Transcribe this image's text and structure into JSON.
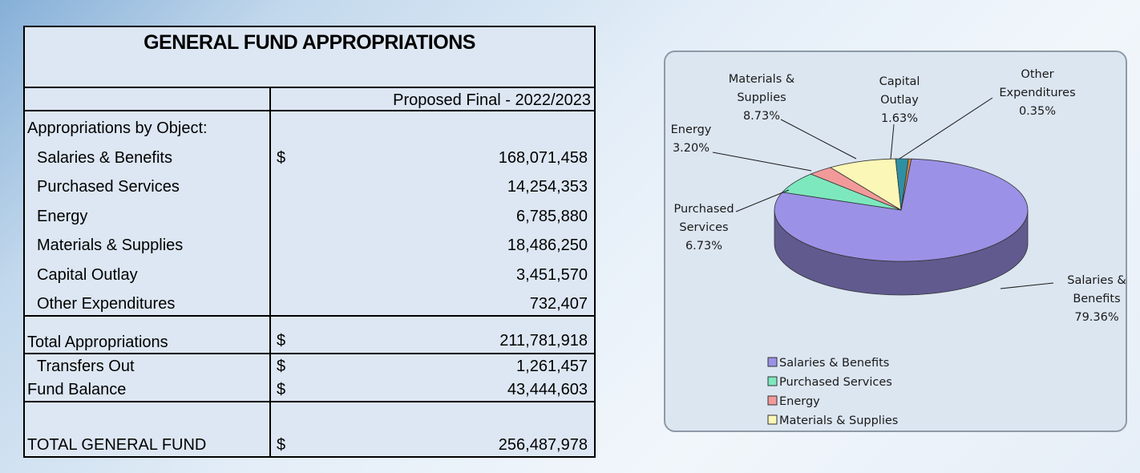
{
  "table": {
    "title": "GENERAL FUND APPROPRIATIONS",
    "column_header": "Proposed Final -  2022/2023",
    "section_label": "Appropriations by Object:",
    "rows": [
      {
        "label": "Salaries & Benefits",
        "dollar": "$",
        "amount": "168,071,458"
      },
      {
        "label": "Purchased Services",
        "dollar": "",
        "amount": "14,254,353"
      },
      {
        "label": "Energy",
        "dollar": "",
        "amount": "6,785,880"
      },
      {
        "label": "Materials & Supplies",
        "dollar": "",
        "amount": "18,486,250"
      },
      {
        "label": "Capital Outlay",
        "dollar": "",
        "amount": "3,451,570"
      },
      {
        "label": "Other Expenditures",
        "dollar": "",
        "amount": "732,407"
      }
    ],
    "total_appropriations": {
      "label": "Total Appropriations",
      "dollar": "$",
      "amount": "211,781,918"
    },
    "transfers_out": {
      "label": "Transfers Out",
      "dollar": "$",
      "amount": "1,261,457"
    },
    "fund_balance": {
      "label": "Fund Balance",
      "dollar": "$",
      "amount": "43,444,603"
    },
    "total_general_fund": {
      "label": "TOTAL GENERAL FUND",
      "dollar": "$",
      "amount": "256,487,978"
    }
  },
  "chart_data": {
    "type": "pie",
    "style": "3d",
    "slices": [
      {
        "name": "Salaries & Benefits",
        "label_lines": [
          "Salaries &",
          "Benefits",
          "79.36%"
        ],
        "value": 79.36,
        "color": "#9b91e6"
      },
      {
        "name": "Purchased Services",
        "label_lines": [
          "Purchased",
          "Services",
          "6.73%"
        ],
        "value": 6.73,
        "color": "#7de8be"
      },
      {
        "name": "Energy",
        "label_lines": [
          "Energy",
          "3.20%"
        ],
        "value": 3.2,
        "color": "#f29a9a"
      },
      {
        "name": "Materials & Supplies",
        "label_lines": [
          "Materials &",
          "Supplies",
          "8.73%"
        ],
        "value": 8.73,
        "color": "#fbf7b6"
      },
      {
        "name": "Capital Outlay",
        "label_lines": [
          "Capital",
          "Outlay",
          "1.63%"
        ],
        "value": 1.63,
        "color": "#2e8fa3"
      },
      {
        "name": "Other Expenditures",
        "label_lines": [
          "Other",
          "Expenditures",
          "0.35%"
        ],
        "value": 0.35,
        "color": "#d88a3a"
      }
    ],
    "legend": [
      {
        "label": "Salaries & Benefits",
        "color": "#9b91e6"
      },
      {
        "label": "Purchased Services",
        "color": "#7de8be"
      },
      {
        "label": "Energy",
        "color": "#f29a9a"
      },
      {
        "label": "Materials & Supplies",
        "color": "#fbf7b6"
      }
    ],
    "legend_position": "bottom-left"
  }
}
